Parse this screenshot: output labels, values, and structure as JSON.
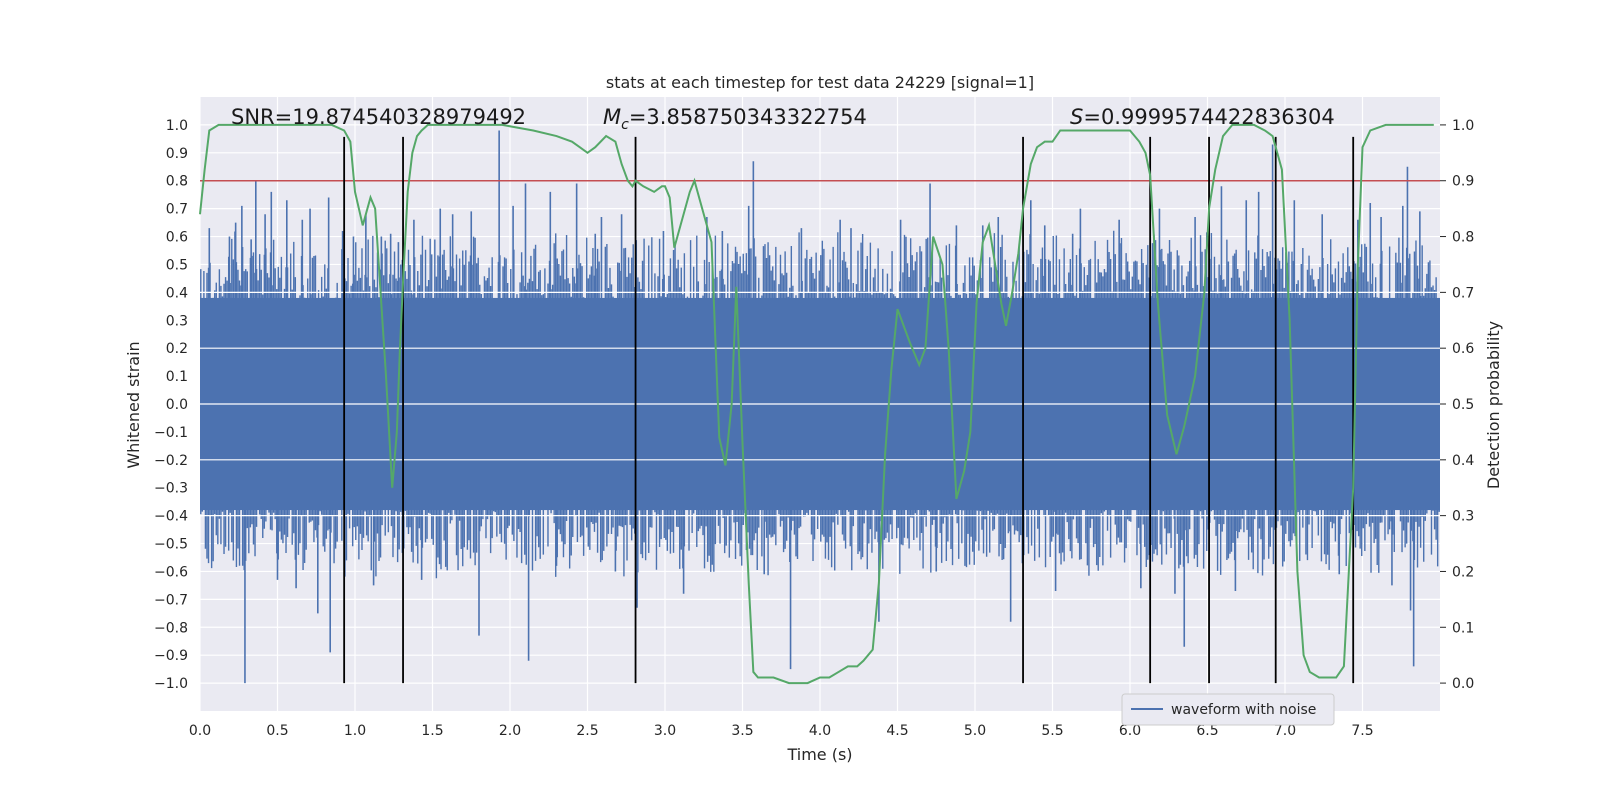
{
  "chart_data": {
    "type": "line",
    "title": "stats at each timestep for test data 24229 [signal=1]",
    "xlabel": "Time (s)",
    "ylabel": "Whitened strain",
    "y2label": "Detection probability",
    "xlim": [
      0,
      8.0
    ],
    "ylim": [
      -1.1,
      1.1
    ],
    "y2lim": [
      -0.05,
      1.05
    ],
    "x_ticks": [
      0.0,
      0.5,
      1.0,
      1.5,
      2.0,
      2.5,
      3.0,
      3.5,
      4.0,
      4.5,
      5.0,
      5.5,
      6.0,
      6.5,
      7.0,
      7.5
    ],
    "x_tick_labels": [
      "0.0",
      "0.5",
      "1.0",
      "1.5",
      "2.0",
      "2.5",
      "3.0",
      "3.5",
      "4.0",
      "4.5",
      "5.0",
      "5.5",
      "6.0",
      "6.5",
      "7.0",
      "7.5"
    ],
    "y_ticks": [
      1.0,
      0.9,
      0.8,
      0.7,
      0.6,
      0.5,
      0.4,
      0.3,
      0.2,
      0.1,
      0.0,
      -0.1,
      -0.2,
      -0.3,
      -0.4,
      -0.5,
      -0.6,
      -0.7,
      -0.8,
      -0.9,
      -1.0
    ],
    "y_tick_labels": [
      "1.0",
      "0.9",
      "0.8",
      "0.7",
      "0.6",
      "0.5",
      "0.4",
      "0.3",
      "0.2",
      "0.1",
      "0.0",
      "−0.1",
      "−0.2",
      "−0.3",
      "−0.4",
      "−0.5",
      "−0.6",
      "−0.7",
      "−0.8",
      "−0.9",
      "−1.0"
    ],
    "y2_ticks": [
      1.0,
      0.9,
      0.8,
      0.7,
      0.6,
      0.5,
      0.4,
      0.3,
      0.2,
      0.1,
      0.0
    ],
    "y2_tick_labels": [
      "1.0",
      "0.9",
      "0.8",
      "0.7",
      "0.6",
      "0.5",
      "0.4",
      "0.3",
      "0.2",
      "0.1",
      "0.0"
    ],
    "grid": true,
    "annotations": {
      "snr": "SNR=19.874540328979492",
      "mc_value": "=3.858750343322754",
      "s_value": "=0.9999574422836304"
    },
    "legend": {
      "placement": "lower-right",
      "entries": [
        "waveform with noise"
      ]
    },
    "threshold": {
      "value": 0.9,
      "axis": "y2",
      "color": "#c44e52"
    },
    "vertical_lines": [
      0.93,
      1.31,
      2.81,
      5.31,
      6.13,
      6.51,
      6.94,
      7.44
    ],
    "waveform": {
      "name": "waveform with noise",
      "color": "#4c72b0",
      "n_samples": 800,
      "envelope": [
        0.55,
        -0.55
      ],
      "spikes": [
        [
          0.06,
          0.63
        ],
        [
          0.19,
          0.6
        ],
        [
          0.23,
          0.65
        ],
        [
          0.27,
          0.71
        ],
        [
          0.29,
          -1.0
        ],
        [
          0.33,
          0.59
        ],
        [
          0.36,
          0.8
        ],
        [
          0.42,
          0.68
        ],
        [
          0.46,
          0.76
        ],
        [
          0.5,
          -0.63
        ],
        [
          0.56,
          0.73
        ],
        [
          0.62,
          -0.66
        ],
        [
          0.66,
          0.66
        ],
        [
          0.71,
          0.7
        ],
        [
          0.76,
          -0.75
        ],
        [
          0.83,
          0.74
        ],
        [
          0.84,
          -0.89
        ],
        [
          0.92,
          0.62
        ],
        [
          0.99,
          0.6
        ],
        [
          1.07,
          0.68
        ],
        [
          1.12,
          -0.65
        ],
        [
          1.17,
          0.6
        ],
        [
          1.23,
          0.61
        ],
        [
          1.28,
          0.58
        ],
        [
          1.38,
          0.66
        ],
        [
          1.43,
          -0.63
        ],
        [
          1.55,
          0.7
        ],
        [
          1.63,
          0.68
        ],
        [
          1.75,
          0.69
        ],
        [
          1.8,
          -0.83
        ],
        [
          1.93,
          0.98
        ],
        [
          2.02,
          0.71
        ],
        [
          2.1,
          0.79
        ],
        [
          2.12,
          -0.92
        ],
        [
          2.26,
          0.76
        ],
        [
          2.3,
          -0.58
        ],
        [
          2.43,
          0.79
        ],
        [
          2.55,
          0.61
        ],
        [
          2.59,
          0.67
        ],
        [
          2.68,
          -0.6
        ],
        [
          2.72,
          0.68
        ],
        [
          2.82,
          -0.73
        ],
        [
          2.99,
          0.62
        ],
        [
          3.12,
          -0.68
        ],
        [
          3.27,
          0.67
        ],
        [
          3.37,
          0.62
        ],
        [
          3.54,
          0.71
        ],
        [
          3.57,
          0.87
        ],
        [
          3.64,
          -0.61
        ],
        [
          3.81,
          -0.95
        ],
        [
          3.88,
          0.63
        ],
        [
          4.13,
          0.66
        ],
        [
          4.2,
          0.63
        ],
        [
          4.38,
          -0.78
        ],
        [
          4.52,
          0.66
        ],
        [
          4.71,
          0.79
        ],
        [
          4.75,
          -0.6
        ],
        [
          4.88,
          0.64
        ],
        [
          5.05,
          0.64
        ],
        [
          5.15,
          0.67
        ],
        [
          5.23,
          -0.78
        ],
        [
          5.36,
          0.73
        ],
        [
          5.45,
          0.64
        ],
        [
          5.52,
          -0.67
        ],
        [
          5.63,
          0.61
        ],
        [
          5.68,
          0.7
        ],
        [
          5.93,
          0.66
        ],
        [
          6.07,
          -0.66
        ],
        [
          6.19,
          0.7
        ],
        [
          6.29,
          -0.68
        ],
        [
          6.35,
          -0.87
        ],
        [
          6.42,
          0.67
        ],
        [
          6.59,
          0.78
        ],
        [
          6.68,
          -0.67
        ],
        [
          6.75,
          0.73
        ],
        [
          6.83,
          0.76
        ],
        [
          6.92,
          0.93
        ],
        [
          7.06,
          0.73
        ],
        [
          7.24,
          0.68
        ],
        [
          7.35,
          -0.61
        ],
        [
          7.47,
          0.66
        ],
        [
          7.55,
          0.72
        ],
        [
          7.62,
          0.67
        ],
        [
          7.69,
          -0.65
        ],
        [
          7.76,
          0.71
        ],
        [
          7.79,
          0.85
        ],
        [
          7.81,
          -0.74
        ],
        [
          7.83,
          -0.94
        ],
        [
          7.87,
          0.69
        ]
      ]
    },
    "probability": {
      "color": "#55a868",
      "x": [
        0.0,
        0.03,
        0.06,
        0.12,
        0.2,
        0.3,
        0.45,
        0.6,
        0.75,
        0.85,
        0.93,
        0.97,
        1.0,
        1.05,
        1.1,
        1.13,
        1.2,
        1.24,
        1.27,
        1.29,
        1.31,
        1.34,
        1.37,
        1.4,
        1.43,
        1.47,
        1.52,
        1.6,
        1.75,
        1.95,
        2.15,
        2.3,
        2.4,
        2.45,
        2.5,
        2.55,
        2.62,
        2.68,
        2.72,
        2.76,
        2.79,
        2.81,
        2.86,
        2.93,
        2.98,
        3.0,
        3.03,
        3.06,
        3.1,
        3.16,
        3.19,
        3.24,
        3.3,
        3.35,
        3.39,
        3.43,
        3.46,
        3.5,
        3.54,
        3.57,
        3.6,
        3.7,
        3.8,
        3.92,
        4.0,
        4.06,
        4.12,
        4.18,
        4.24,
        4.28,
        4.34,
        4.38,
        4.42,
        4.46,
        4.5,
        4.58,
        4.64,
        4.68,
        4.73,
        4.79,
        4.83,
        4.88,
        4.93,
        4.97,
        5.01,
        5.05,
        5.09,
        5.13,
        5.17,
        5.2,
        5.24,
        5.28,
        5.31,
        5.36,
        5.4,
        5.45,
        5.5,
        5.55,
        5.6,
        5.7,
        5.8,
        5.9,
        6.0,
        6.06,
        6.1,
        6.13,
        6.18,
        6.24,
        6.3,
        6.35,
        6.42,
        6.48,
        6.51,
        6.55,
        6.6,
        6.66,
        6.72,
        6.8,
        6.87,
        6.92,
        6.94,
        6.98,
        7.03,
        7.08,
        7.12,
        7.16,
        7.22,
        7.28,
        7.33,
        7.38,
        7.44,
        7.47,
        7.5,
        7.55,
        7.65,
        7.8,
        7.96
      ],
      "y": [
        0.84,
        0.92,
        0.99,
        1.0,
        1.0,
        1.0,
        1.0,
        1.0,
        1.0,
        1.0,
        0.99,
        0.97,
        0.88,
        0.82,
        0.87,
        0.85,
        0.55,
        0.35,
        0.45,
        0.6,
        0.72,
        0.88,
        0.95,
        0.98,
        0.99,
        1.0,
        1.0,
        1.0,
        1.0,
        1.0,
        0.99,
        0.98,
        0.97,
        0.96,
        0.95,
        0.96,
        0.98,
        0.97,
        0.93,
        0.9,
        0.89,
        0.9,
        0.89,
        0.88,
        0.89,
        0.89,
        0.87,
        0.78,
        0.82,
        0.88,
        0.9,
        0.85,
        0.79,
        0.44,
        0.39,
        0.5,
        0.71,
        0.43,
        0.18,
        0.02,
        0.01,
        0.01,
        0.0,
        0.0,
        0.01,
        0.01,
        0.02,
        0.03,
        0.03,
        0.04,
        0.06,
        0.18,
        0.41,
        0.56,
        0.67,
        0.61,
        0.57,
        0.6,
        0.8,
        0.75,
        0.6,
        0.33,
        0.38,
        0.45,
        0.68,
        0.79,
        0.82,
        0.75,
        0.68,
        0.64,
        0.7,
        0.77,
        0.85,
        0.93,
        0.96,
        0.97,
        0.97,
        0.99,
        0.99,
        0.99,
        0.99,
        0.99,
        0.99,
        0.97,
        0.95,
        0.91,
        0.68,
        0.48,
        0.41,
        0.46,
        0.55,
        0.7,
        0.85,
        0.92,
        0.98,
        1.0,
        1.0,
        1.0,
        0.99,
        0.98,
        0.96,
        0.92,
        0.65,
        0.2,
        0.05,
        0.02,
        0.01,
        0.01,
        0.01,
        0.03,
        0.35,
        0.75,
        0.96,
        0.99,
        1.0,
        1.0,
        1.0
      ]
    }
  }
}
